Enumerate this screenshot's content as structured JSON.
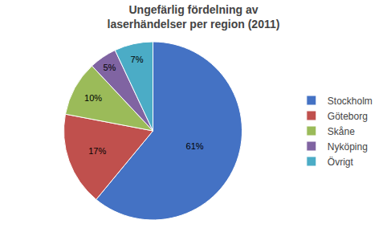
{
  "chart_data": {
    "type": "pie",
    "title": "Ungefärlig fördelning av\nlaserhändelser per region (2011)",
    "categories": [
      "Stockholm",
      "Göteborg",
      "Skåne",
      "Nyköping",
      "Övrigt"
    ],
    "values": [
      61,
      17,
      10,
      5,
      7
    ],
    "value_labels": [
      "61%",
      "17%",
      "10%",
      "5%",
      "7%"
    ],
    "colors": [
      "#4472C4",
      "#C0504D",
      "#9BBB59",
      "#8064A2",
      "#4BACC6"
    ],
    "data_labels": true,
    "legend": "right"
  }
}
